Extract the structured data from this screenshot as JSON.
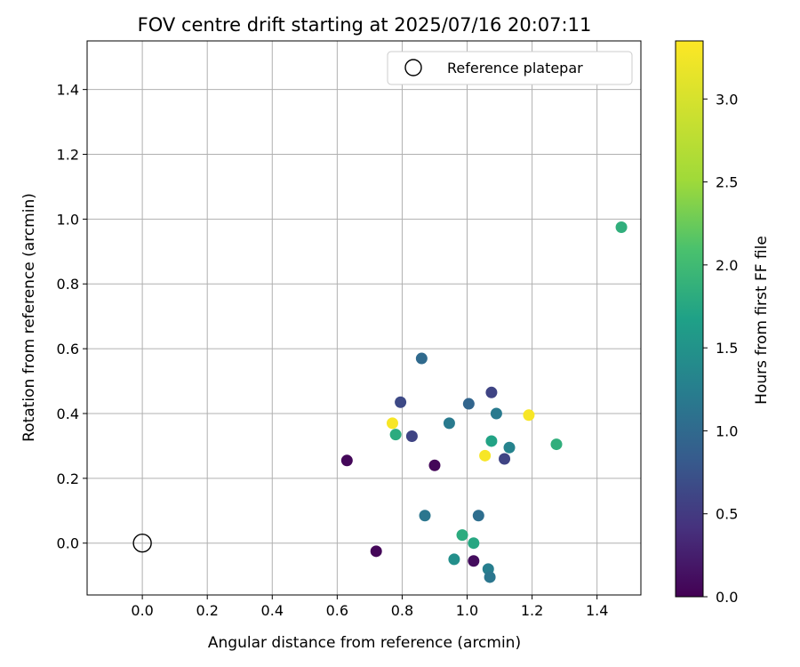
{
  "chart_data": {
    "type": "scatter",
    "title": "FOV centre drift starting at 2025/07/16 20:07:11",
    "xlabel": "Angular distance from reference (arcmin)",
    "ylabel": "Rotation from reference (arcmin)",
    "xlim": [
      -0.17,
      1.535
    ],
    "ylim": [
      -0.16,
      1.55
    ],
    "xticks": [
      0.0,
      0.2,
      0.4,
      0.6,
      0.8,
      1.0,
      1.2,
      1.4
    ],
    "yticks": [
      0.0,
      0.2,
      0.4,
      0.6,
      0.8,
      1.0,
      1.2,
      1.4
    ],
    "grid": true,
    "legend": {
      "placement": "top-right",
      "entries": [
        "Reference platepar"
      ]
    },
    "reference_point": {
      "name": "Reference platepar",
      "x": 0.0,
      "y": 0.0
    },
    "colorbar": {
      "label": "Hours from first FF file",
      "colormap": "viridis",
      "range": [
        0.0,
        3.35
      ],
      "ticks": [
        0.0,
        0.5,
        1.0,
        1.5,
        2.0,
        2.5,
        3.0
      ]
    },
    "points": [
      {
        "x": 0.63,
        "y": 0.255,
        "c": 0.05
      },
      {
        "x": 0.72,
        "y": -0.025,
        "c": 0.05
      },
      {
        "x": 0.9,
        "y": 0.24,
        "c": 0.05
      },
      {
        "x": 1.02,
        "y": -0.055,
        "c": 0.1
      },
      {
        "x": 0.83,
        "y": 0.33,
        "c": 0.6
      },
      {
        "x": 0.795,
        "y": 0.435,
        "c": 0.65
      },
      {
        "x": 1.075,
        "y": 0.465,
        "c": 0.6
      },
      {
        "x": 1.115,
        "y": 0.26,
        "c": 0.6
      },
      {
        "x": 0.86,
        "y": 0.57,
        "c": 1.0
      },
      {
        "x": 1.005,
        "y": 0.43,
        "c": 0.95
      },
      {
        "x": 1.035,
        "y": 0.085,
        "c": 1.05
      },
      {
        "x": 0.87,
        "y": 0.085,
        "c": 1.15
      },
      {
        "x": 1.09,
        "y": 0.4,
        "c": 1.2
      },
      {
        "x": 0.945,
        "y": 0.37,
        "c": 1.2
      },
      {
        "x": 1.13,
        "y": 0.295,
        "c": 1.3
      },
      {
        "x": 1.065,
        "y": -0.08,
        "c": 1.25
      },
      {
        "x": 1.07,
        "y": -0.105,
        "c": 1.15
      },
      {
        "x": 0.96,
        "y": -0.05,
        "c": 1.45
      },
      {
        "x": 0.78,
        "y": 0.335,
        "c": 1.8
      },
      {
        "x": 0.985,
        "y": 0.025,
        "c": 1.8
      },
      {
        "x": 1.02,
        "y": 0.0,
        "c": 1.75
      },
      {
        "x": 1.075,
        "y": 0.315,
        "c": 1.7
      },
      {
        "x": 1.275,
        "y": 0.305,
        "c": 1.85
      },
      {
        "x": 1.475,
        "y": 0.975,
        "c": 1.85
      },
      {
        "x": 0.77,
        "y": 0.37,
        "c": 3.3
      },
      {
        "x": 1.055,
        "y": 0.27,
        "c": 3.3
      },
      {
        "x": 1.19,
        "y": 0.395,
        "c": 3.3
      }
    ]
  }
}
